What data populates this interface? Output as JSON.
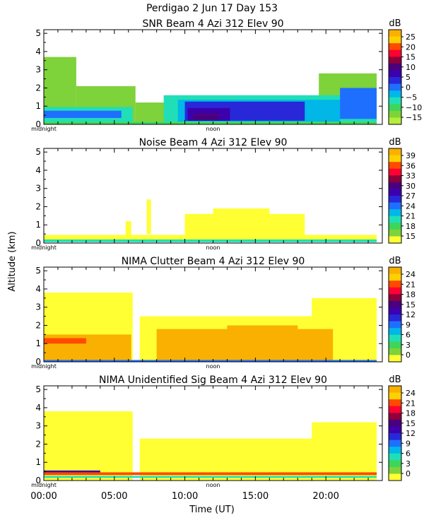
{
  "header": {
    "title": "Perdigao    2 Jun 17 Day 153"
  },
  "shared": {
    "ylabel": "Altitude (km)",
    "xlabel": "Time (UT)",
    "midnight_label": "midnight",
    "noon_label": "noon",
    "colorbar_unit": "dB"
  },
  "chart_data": [
    {
      "type": "heatmap",
      "title": "SNR Beam 4 Azi 312 Elev 90",
      "ylim": [
        0,
        5.2
      ],
      "xlim": [
        0,
        24
      ],
      "yticks": [
        0,
        1,
        2,
        3,
        4,
        5
      ],
      "colorbar_ticks": [
        "25",
        "20",
        "15",
        "10",
        "5",
        "0",
        "−5",
        "−10",
        "−15"
      ],
      "colorbar_colors": [
        "#f9b000",
        "#ffd000",
        "#ff4a00",
        "#ff0033",
        "#90003a",
        "#4a007d",
        "#3c00ae",
        "#2828d8",
        "#1f6fff",
        "#00b7e8",
        "#20dfb8",
        "#3ed65a",
        "#7ed23a",
        "#b4ee3a"
      ],
      "regions": [
        {
          "color": "#7ed23a",
          "t0": 0.0,
          "t1": 2.3,
          "h0": 0.15,
          "h1": 3.7
        },
        {
          "color": "#7ed23a",
          "t0": 2.3,
          "t1": 6.5,
          "h0": 0.15,
          "h1": 2.1
        },
        {
          "color": "#7ed23a",
          "t0": 6.5,
          "t1": 23.6,
          "h0": 0.15,
          "h1": 1.2
        },
        {
          "color": "#7ed23a",
          "t0": 19.5,
          "t1": 23.6,
          "h0": 0.15,
          "h1": 2.8
        },
        {
          "color": "#20dfb8",
          "t0": 0.0,
          "t1": 6.3,
          "h0": 0.15,
          "h1": 0.95
        },
        {
          "color": "#1f6fff",
          "t0": 0.0,
          "t1": 5.5,
          "h0": 0.35,
          "h1": 0.75
        },
        {
          "color": "#20dfb8",
          "t0": 8.5,
          "t1": 23.6,
          "h0": 0.15,
          "h1": 1.6
        },
        {
          "color": "#00b7e8",
          "t0": 9.5,
          "t1": 21.0,
          "h0": 0.15,
          "h1": 1.35
        },
        {
          "color": "#2828d8",
          "t0": 10.0,
          "t1": 18.5,
          "h0": 0.2,
          "h1": 1.25
        },
        {
          "color": "#3c00ae",
          "t0": 10.2,
          "t1": 13.2,
          "h0": 0.2,
          "h1": 0.9
        },
        {
          "color": "#4a007d",
          "t0": 10.6,
          "t1": 12.4,
          "h0": 0.25,
          "h1": 0.6
        },
        {
          "color": "#1f6fff",
          "t0": 21.0,
          "t1": 23.6,
          "h0": 0.3,
          "h1": 2.0
        },
        {
          "color": "#3ed65a",
          "t0": 0.0,
          "t1": 23.6,
          "h0": 0.0,
          "h1": 0.15
        }
      ]
    },
    {
      "type": "heatmap",
      "title": "Noise Beam 4 Azi 312 Elev 90",
      "ylim": [
        0,
        5.2
      ],
      "xlim": [
        0,
        24
      ],
      "yticks": [
        0,
        1,
        2,
        3,
        4,
        5
      ],
      "colorbar_ticks": [
        "39",
        "36",
        "33",
        "30",
        "27",
        "24",
        "21",
        "18",
        "15"
      ],
      "colorbar_colors": [
        "#f9b000",
        "#ffd000",
        "#ff4a00",
        "#ff0033",
        "#90003a",
        "#4a007d",
        "#3c00ae",
        "#2828d8",
        "#1f6fff",
        "#00b7e8",
        "#20dfb8",
        "#3ed65a",
        "#7ed23a",
        "#ffff33"
      ],
      "regions": [
        {
          "color": "#ffff33",
          "t0": 0.0,
          "t1": 23.6,
          "h0": 0.05,
          "h1": 0.45
        },
        {
          "color": "#ffff33",
          "t0": 10.0,
          "t1": 18.5,
          "h0": 0.05,
          "h1": 1.6
        },
        {
          "color": "#ffff33",
          "t0": 12.0,
          "t1": 16.0,
          "h0": 1.4,
          "h1": 1.9
        },
        {
          "color": "#ffff33",
          "t0": 7.3,
          "t1": 7.6,
          "h0": 0.5,
          "h1": 2.4
        },
        {
          "color": "#ffff33",
          "t0": 5.8,
          "t1": 6.2,
          "h0": 0.4,
          "h1": 1.2
        },
        {
          "color": "#20dfb8",
          "t0": 0.0,
          "t1": 23.6,
          "h0": 0.05,
          "h1": 0.2
        }
      ]
    },
    {
      "type": "heatmap",
      "title": "NIMA Clutter Beam 4 Azi 312 Elev 90",
      "ylim": [
        0,
        5.2
      ],
      "xlim": [
        0,
        24
      ],
      "yticks": [
        0,
        1,
        2,
        3,
        4,
        5
      ],
      "colorbar_ticks": [
        "24",
        "21",
        "18",
        "15",
        "12",
        "9",
        "6",
        "3",
        "0"
      ],
      "colorbar_colors": [
        "#f9b000",
        "#ffd000",
        "#ff4a00",
        "#ff0033",
        "#90003a",
        "#4a007d",
        "#3c00ae",
        "#2828d8",
        "#1f6fff",
        "#00b7e8",
        "#20dfb8",
        "#3ed65a",
        "#7ed23a",
        "#ffff33"
      ],
      "regions": [
        {
          "color": "#ffff33",
          "t0": 0.0,
          "t1": 6.3,
          "h0": 0.0,
          "h1": 3.8
        },
        {
          "color": "#ffff33",
          "t0": 6.8,
          "t1": 23.6,
          "h0": 0.0,
          "h1": 2.5
        },
        {
          "color": "#ffff33",
          "t0": 19.0,
          "t1": 23.6,
          "h0": 0.0,
          "h1": 3.5
        },
        {
          "color": "#f9b000",
          "t0": 0.0,
          "t1": 6.2,
          "h0": 0.05,
          "h1": 1.5
        },
        {
          "color": "#f9b000",
          "t0": 8.0,
          "t1": 20.5,
          "h0": 0.05,
          "h1": 1.8
        },
        {
          "color": "#f9b000",
          "t0": 13.0,
          "t1": 18.0,
          "h0": 0.05,
          "h1": 2.0
        },
        {
          "color": "#ff4a00",
          "t0": 0.0,
          "t1": 3.0,
          "h0": 1.0,
          "h1": 1.3
        },
        {
          "color": "#1f6fff",
          "t0": 0.0,
          "t1": 23.6,
          "h0": 0.0,
          "h1": 0.1
        }
      ]
    },
    {
      "type": "heatmap",
      "title": "NIMA Unidentified Sig Beam 4 Azi 312 Elev 90",
      "ylim": [
        0,
        5.2
      ],
      "xlim": [
        0,
        24
      ],
      "yticks": [
        0,
        1,
        2,
        3,
        4,
        5
      ],
      "xticks": [
        "00:00",
        "05:00",
        "10:00",
        "15:00",
        "20:00"
      ],
      "xtick_values": [
        0,
        5,
        10,
        15,
        20
      ],
      "colorbar_ticks": [
        "24",
        "21",
        "18",
        "15",
        "12",
        "9",
        "6",
        "3",
        "0"
      ],
      "colorbar_colors": [
        "#f9b000",
        "#ffd000",
        "#ff4a00",
        "#ff0033",
        "#90003a",
        "#4a007d",
        "#3c00ae",
        "#2828d8",
        "#1f6fff",
        "#00b7e8",
        "#20dfb8",
        "#3ed65a",
        "#7ed23a",
        "#ffff33"
      ],
      "regions": [
        {
          "color": "#ffff33",
          "t0": 0.0,
          "t1": 6.3,
          "h0": 0.0,
          "h1": 3.8
        },
        {
          "color": "#ffff33",
          "t0": 6.8,
          "t1": 23.6,
          "h0": 0.0,
          "h1": 2.3
        },
        {
          "color": "#ffff33",
          "t0": 19.0,
          "t1": 23.6,
          "h0": 0.0,
          "h1": 3.2
        },
        {
          "color": "#ff4a00",
          "t0": 0.0,
          "t1": 23.6,
          "h0": 0.3,
          "h1": 0.45
        },
        {
          "color": "#20dfb8",
          "t0": 0.0,
          "t1": 23.6,
          "h0": 0.15,
          "h1": 0.25
        },
        {
          "color": "#3c00ae",
          "t0": 0.0,
          "t1": 4.0,
          "h0": 0.45,
          "h1": 0.55
        }
      ]
    }
  ]
}
